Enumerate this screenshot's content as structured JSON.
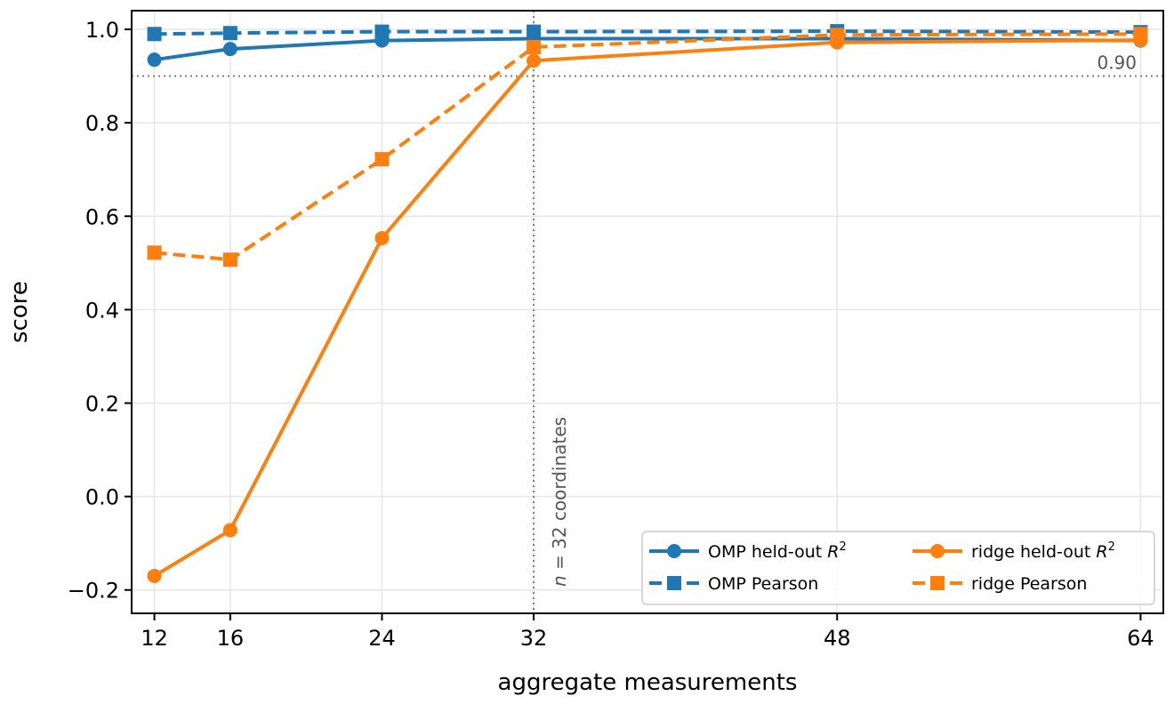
{
  "chart_data": {
    "type": "line",
    "xlabel": "aggregate measurements",
    "ylabel": "score",
    "xlim": [
      10.8,
      65.2
    ],
    "ylim": [
      -0.25,
      1.04
    ],
    "xticks": [
      12,
      16,
      24,
      32,
      48,
      64
    ],
    "yticks": [
      -0.2,
      0.0,
      0.2,
      0.4,
      0.6,
      0.8,
      1.0
    ],
    "ytick_labels": [
      "−0.2",
      "0.0",
      "0.2",
      "0.4",
      "0.6",
      "0.8",
      "1.0"
    ],
    "grid": true,
    "legend_position": "lower-right",
    "x": [
      12,
      16,
      24,
      32,
      48,
      64
    ],
    "series": [
      {
        "name": "OMP held-out R²",
        "color": "#1f77b4",
        "linestyle": "solid",
        "marker": "circle",
        "values": [
          0.935,
          0.958,
          0.976,
          0.98,
          0.98,
          0.976
        ]
      },
      {
        "name": "OMP Pearson",
        "color": "#1f77b4",
        "linestyle": "dashed",
        "marker": "square",
        "values": [
          0.99,
          0.992,
          0.995,
          0.995,
          0.996,
          0.994
        ]
      },
      {
        "name": "ridge held-out R²",
        "color": "#ff7f0e",
        "linestyle": "solid",
        "marker": "circle",
        "values": [
          -0.17,
          -0.072,
          0.553,
          0.933,
          0.972,
          0.977
        ]
      },
      {
        "name": "ridge Pearson",
        "color": "#ff7f0e",
        "linestyle": "dashed",
        "marker": "square",
        "values": [
          0.522,
          0.507,
          0.722,
          0.962,
          0.988,
          0.99
        ]
      }
    ],
    "hline": {
      "y": 0.9,
      "label": "0.90"
    },
    "vline": {
      "x": 32,
      "label": "n = 32 coordinates"
    }
  }
}
